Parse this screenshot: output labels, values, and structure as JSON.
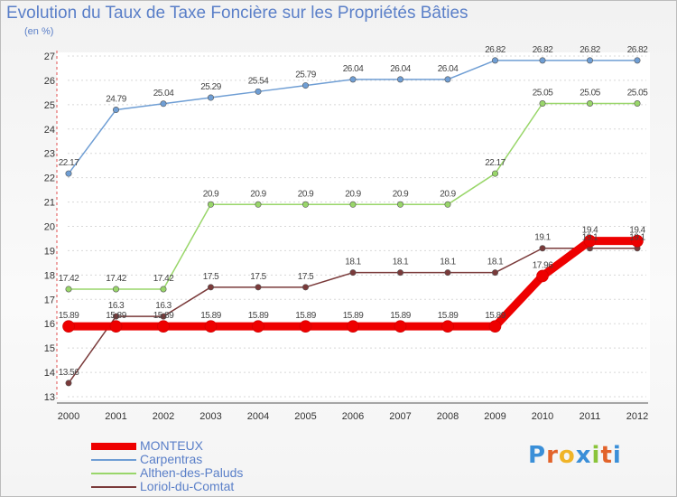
{
  "header": {
    "title": "Evolution du Taux de Taxe Foncière sur les Propriétés Bâties",
    "subtitle": "(en %)"
  },
  "logo": {
    "letters": [
      "P",
      "r",
      "o",
      "x",
      "i",
      "t",
      "i"
    ],
    "colors": [
      "#3a8fd8",
      "#e2632a",
      "#f0b428",
      "#3a8fd8",
      "#8ac43a",
      "#e2632a",
      "#3a8fd8"
    ]
  },
  "chart_data": {
    "type": "line",
    "title": "Evolution du Taux de Taxe Foncière sur les Propriétés Bâties",
    "ylabel": "(en %)",
    "xlabel": "",
    "x": [
      "2000",
      "2001",
      "2002",
      "2003",
      "2004",
      "2005",
      "2006",
      "2007",
      "2008",
      "2009",
      "2010",
      "2011",
      "2012"
    ],
    "ylim": [
      13,
      27
    ],
    "yticks": [
      13,
      14,
      15,
      16,
      17,
      18,
      19,
      20,
      21,
      22,
      23,
      24,
      25,
      26,
      27
    ],
    "grid": "dashed-horizontal",
    "legend_position": "bottom-left",
    "series": [
      {
        "name": "MONTEUX",
        "color": "#ee0000",
        "emphasis": true,
        "values": [
          15.89,
          15.89,
          15.89,
          15.89,
          15.89,
          15.89,
          15.89,
          15.89,
          15.89,
          15.89,
          17.96,
          19.4,
          19.4
        ],
        "labels": [
          "15.89",
          "15.89",
          "15.89",
          "15.89",
          "15.89",
          "15.89",
          "15.89",
          "15.89",
          "15.89",
          "15.89",
          "17.96",
          "19.4",
          "19.4"
        ]
      },
      {
        "name": "Carpentras",
        "color": "#6f9ed4",
        "emphasis": false,
        "values": [
          22.17,
          24.79,
          25.04,
          25.29,
          25.54,
          25.79,
          26.04,
          26.04,
          26.04,
          26.82,
          26.82,
          26.82,
          26.82
        ],
        "labels": [
          "22.17",
          "24.79",
          "25.04",
          "25.29",
          "25.54",
          "25.79",
          "26.04",
          "26.04",
          "26.04",
          "26.82",
          "26.82",
          "26.82",
          "26.82"
        ]
      },
      {
        "name": "Althen-des-Paluds",
        "color": "#99d66a",
        "emphasis": false,
        "values": [
          17.42,
          17.42,
          17.42,
          20.9,
          20.9,
          20.9,
          20.9,
          20.9,
          20.9,
          22.17,
          25.05,
          25.05,
          25.05
        ],
        "labels": [
          "17.42",
          "17.42",
          "17.42",
          "20.9",
          "20.9",
          "20.9",
          "20.9",
          "20.9",
          "20.9",
          "22.17",
          "25.05",
          "25.05",
          "25.05"
        ]
      },
      {
        "name": "Loriol-du-Comtat",
        "color": "#7a3a3a",
        "emphasis": false,
        "values": [
          13.56,
          16.3,
          16.3,
          17.5,
          17.5,
          17.5,
          18.1,
          18.1,
          18.1,
          18.1,
          19.1,
          19.1,
          19.1
        ],
        "labels": [
          "13.56",
          "16.3",
          "16.3",
          "17.5",
          "17.5",
          "17.5",
          "18.1",
          "18.1",
          "18.1",
          "18.1",
          "19.1",
          "19.1",
          "19.1"
        ]
      }
    ]
  }
}
